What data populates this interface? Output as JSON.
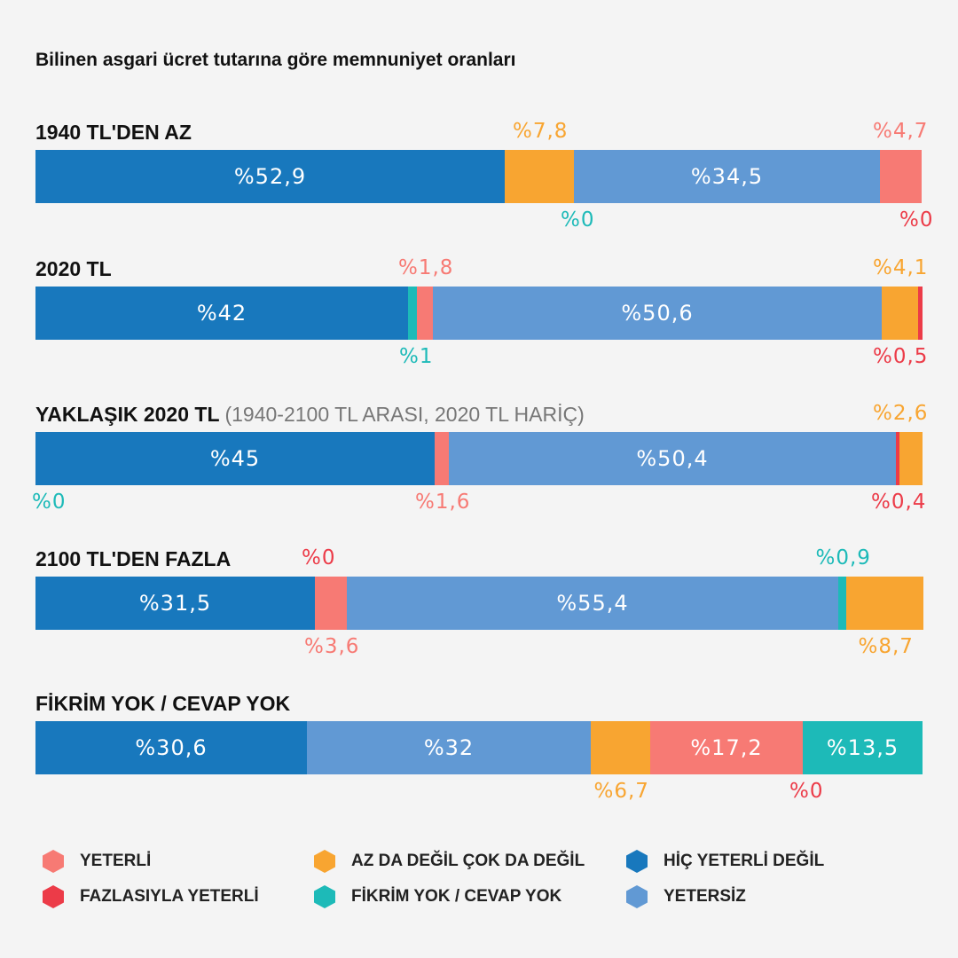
{
  "chart_data": {
    "type": "bar",
    "orientation": "horizontal",
    "stacked": true,
    "percent_prefix": "%",
    "title": "Bilinen asgari ücret tutarına göre memnuniyet oranları",
    "categories": [
      {
        "title": "1940 TL'DEN AZ",
        "note": ""
      },
      {
        "title": "2020 TL",
        "note": ""
      },
      {
        "title": "YAKLAŞIK 2020 TL",
        "note": "(1940-2100 TL ARASI, 2020 TL HARİÇ)"
      },
      {
        "title": "2100 TL'DEN FAZLA",
        "note": ""
      },
      {
        "title": "FİKRİM YOK / CEVAP YOK",
        "note": ""
      }
    ],
    "series": [
      {
        "key": "hic",
        "name": "HİÇ YETERLİ DEĞİL",
        "color": "#1878bd"
      },
      {
        "key": "yetersiz",
        "name": "YETERSİZ",
        "color": "#6199d4"
      },
      {
        "key": "az",
        "name": "AZ DA DEĞİL ÇOK DA DEĞİL",
        "color": "#f8a531"
      },
      {
        "key": "yeterli",
        "name": "YETERLİ",
        "color": "#f77a74"
      },
      {
        "key": "fazla",
        "name": "FAZLASIYLA YETERLİ",
        "color": "#ec3b48"
      },
      {
        "key": "fikrim",
        "name": "FİKRİM YOK / CEVAP YOK",
        "color": "#1dbab8"
      }
    ],
    "rows": [
      {
        "segments": [
          {
            "series": "hic",
            "value": 52.9,
            "label": "%52,9",
            "pos": "in"
          },
          {
            "series": "az",
            "value": 7.8,
            "label": "%7,8",
            "pos": "top"
          },
          {
            "series": "fikrim",
            "value": 0,
            "label": "%0",
            "pos": "bottom"
          },
          {
            "series": "yetersiz",
            "value": 34.5,
            "label": "%34,5",
            "pos": "in"
          },
          {
            "series": "yeterli",
            "value": 4.7,
            "label": "%4,7",
            "pos": "top"
          },
          {
            "series": "fazla",
            "value": 0,
            "label": "%0",
            "pos": "bottom"
          }
        ]
      },
      {
        "segments": [
          {
            "series": "hic",
            "value": 42,
            "label": "%42",
            "pos": "in"
          },
          {
            "series": "fikrim",
            "value": 1,
            "label": "%1",
            "pos": "bottom"
          },
          {
            "series": "yeterli",
            "value": 1.8,
            "label": "%1,8",
            "pos": "top"
          },
          {
            "series": "yetersiz",
            "value": 50.6,
            "label": "%50,6",
            "pos": "in"
          },
          {
            "series": "az",
            "value": 4.1,
            "label": "%4,1",
            "pos": "top"
          },
          {
            "series": "fazla",
            "value": 0.5,
            "label": "%0,5",
            "pos": "bottom"
          }
        ]
      },
      {
        "segments": [
          {
            "series": "fikrim",
            "value": 0,
            "label": "%0",
            "pos": "bottom"
          },
          {
            "series": "hic",
            "value": 45,
            "label": "%45",
            "pos": "in"
          },
          {
            "series": "yeterli",
            "value": 1.6,
            "label": "%1,6",
            "pos": "bottom"
          },
          {
            "series": "yetersiz",
            "value": 50.4,
            "label": "%50,4",
            "pos": "in"
          },
          {
            "series": "fazla",
            "value": 0.4,
            "label": "%0,4",
            "pos": "bottom"
          },
          {
            "series": "az",
            "value": 2.6,
            "label": "%2,6",
            "pos": "top"
          }
        ]
      },
      {
        "segments": [
          {
            "series": "hic",
            "value": 31.5,
            "label": "%31,5",
            "pos": "in"
          },
          {
            "series": "fazla",
            "value": 0,
            "label": "%0",
            "pos": "top"
          },
          {
            "series": "yeterli",
            "value": 3.6,
            "label": "%3,6",
            "pos": "bottom"
          },
          {
            "series": "yetersiz",
            "value": 55.4,
            "label": "%55,4",
            "pos": "in"
          },
          {
            "series": "fikrim",
            "value": 0.9,
            "label": "%0,9",
            "pos": "top"
          },
          {
            "series": "az",
            "value": 8.7,
            "label": "%8,7",
            "pos": "bottom"
          }
        ]
      },
      {
        "segments": [
          {
            "series": "hic",
            "value": 30.6,
            "label": "%30,6",
            "pos": "in"
          },
          {
            "series": "yetersiz",
            "value": 32,
            "label": "%32",
            "pos": "in"
          },
          {
            "series": "az",
            "value": 6.7,
            "label": "%6,7",
            "pos": "bottom"
          },
          {
            "series": "yeterli",
            "value": 17.2,
            "label": "%17,2",
            "pos": "in"
          },
          {
            "series": "fazla",
            "value": 0,
            "label": "%0",
            "pos": "bottom"
          },
          {
            "series": "fikrim",
            "value": 13.5,
            "label": "%13,5",
            "pos": "in"
          }
        ]
      }
    ],
    "legend": [
      "yeterli",
      "fazla",
      "az",
      "fikrim",
      "hic",
      "yetersiz"
    ],
    "xlim": [
      0,
      100
    ]
  }
}
